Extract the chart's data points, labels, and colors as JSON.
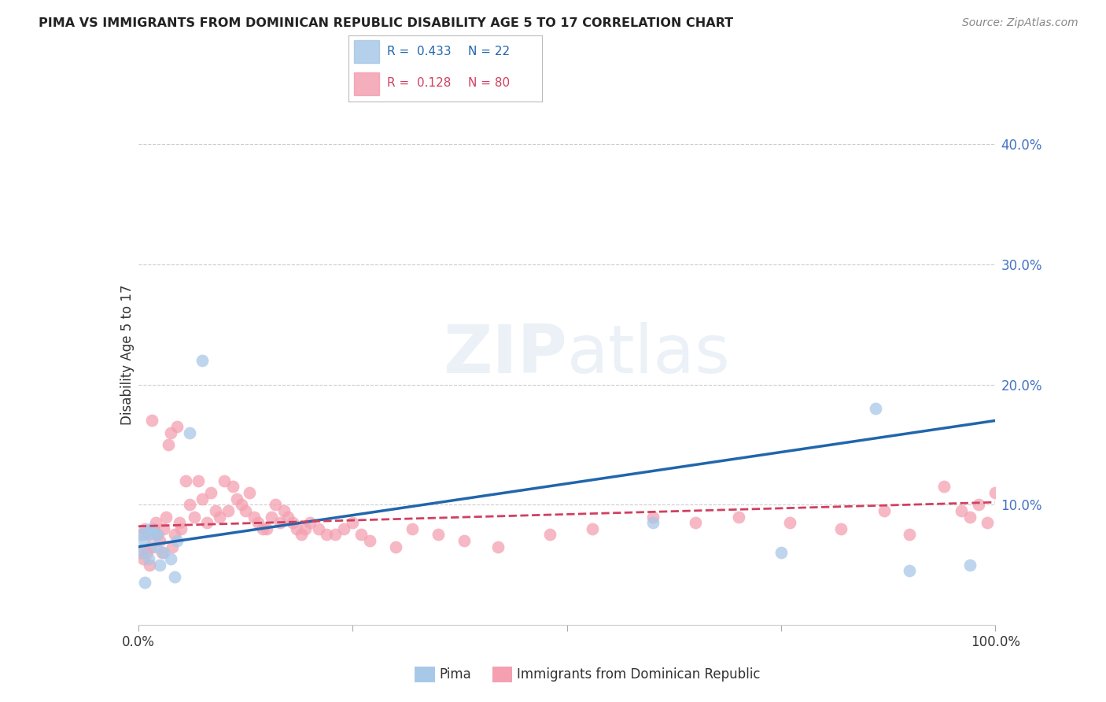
{
  "title": "PIMA VS IMMIGRANTS FROM DOMINICAN REPUBLIC DISABILITY AGE 5 TO 17 CORRELATION CHART",
  "source": "Source: ZipAtlas.com",
  "ylabel": "Disability Age 5 to 17",
  "xlim": [
    0,
    1.0
  ],
  "ylim": [
    0,
    0.45
  ],
  "pima_color": "#a8c8e8",
  "pima_color_line": "#2166ac",
  "dr_color": "#f4a0b0",
  "dr_color_line": "#d04060",
  "background_color": "#ffffff",
  "grid_color": "#cccccc",
  "pima_line_start_y": 0.065,
  "pima_line_end_y": 0.17,
  "dr_line_start_y": 0.082,
  "dr_line_end_y": 0.102,
  "pima_points_x": [
    0.003,
    0.005,
    0.007,
    0.008,
    0.01,
    0.012,
    0.015,
    0.018,
    0.02,
    0.022,
    0.025,
    0.03,
    0.038,
    0.042,
    0.045,
    0.06,
    0.075,
    0.6,
    0.75,
    0.86,
    0.9,
    0.97
  ],
  "pima_points_y": [
    0.075,
    0.06,
    0.07,
    0.035,
    0.078,
    0.055,
    0.08,
    0.075,
    0.065,
    0.075,
    0.05,
    0.06,
    0.055,
    0.04,
    0.07,
    0.16,
    0.22,
    0.085,
    0.06,
    0.18,
    0.045,
    0.05
  ],
  "dr_points_x": [
    0.003,
    0.005,
    0.006,
    0.008,
    0.01,
    0.012,
    0.013,
    0.015,
    0.016,
    0.018,
    0.02,
    0.022,
    0.025,
    0.028,
    0.03,
    0.032,
    0.035,
    0.038,
    0.04,
    0.042,
    0.045,
    0.048,
    0.05,
    0.055,
    0.06,
    0.065,
    0.07,
    0.075,
    0.08,
    0.085,
    0.09,
    0.095,
    0.1,
    0.105,
    0.11,
    0.115,
    0.12,
    0.125,
    0.13,
    0.135,
    0.14,
    0.145,
    0.15,
    0.155,
    0.16,
    0.165,
    0.17,
    0.175,
    0.18,
    0.185,
    0.19,
    0.195,
    0.2,
    0.21,
    0.22,
    0.23,
    0.24,
    0.25,
    0.26,
    0.27,
    0.3,
    0.32,
    0.35,
    0.38,
    0.42,
    0.48,
    0.53,
    0.6,
    0.65,
    0.7,
    0.76,
    0.82,
    0.87,
    0.9,
    0.94,
    0.96,
    0.97,
    0.98,
    0.99,
    1.0
  ],
  "dr_points_y": [
    0.06,
    0.075,
    0.055,
    0.08,
    0.06,
    0.075,
    0.05,
    0.065,
    0.17,
    0.08,
    0.085,
    0.075,
    0.07,
    0.06,
    0.08,
    0.09,
    0.15,
    0.16,
    0.065,
    0.075,
    0.165,
    0.085,
    0.08,
    0.12,
    0.1,
    0.09,
    0.12,
    0.105,
    0.085,
    0.11,
    0.095,
    0.09,
    0.12,
    0.095,
    0.115,
    0.105,
    0.1,
    0.095,
    0.11,
    0.09,
    0.085,
    0.08,
    0.08,
    0.09,
    0.1,
    0.085,
    0.095,
    0.09,
    0.085,
    0.08,
    0.075,
    0.08,
    0.085,
    0.08,
    0.075,
    0.075,
    0.08,
    0.085,
    0.075,
    0.07,
    0.065,
    0.08,
    0.075,
    0.07,
    0.065,
    0.075,
    0.08,
    0.09,
    0.085,
    0.09,
    0.085,
    0.08,
    0.095,
    0.075,
    0.115,
    0.095,
    0.09,
    0.1,
    0.085,
    0.11
  ]
}
